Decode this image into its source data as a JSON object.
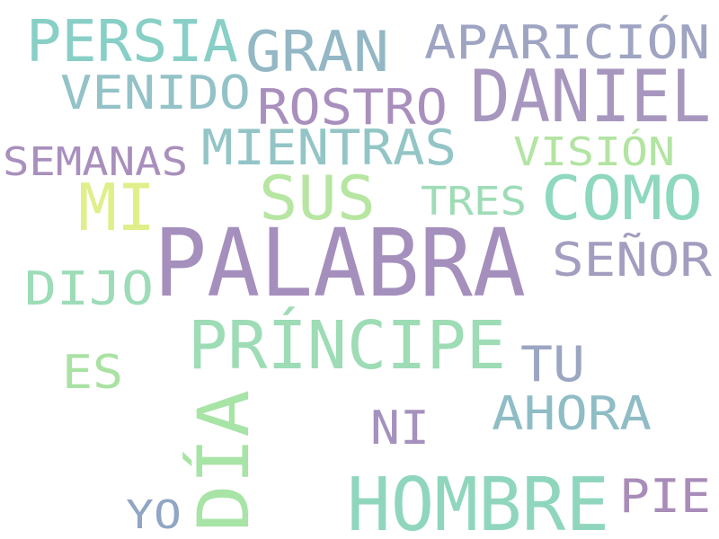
{
  "words": [
    {
      "text": "PALABRA",
      "color": "#a48fbd"
    },
    {
      "text": "HOMBRE",
      "color": "#8fd6bd"
    },
    {
      "text": "DANIEL",
      "color": "#a797bf"
    },
    {
      "text": "PRÍNCIPE",
      "color": "#9ddcb5"
    },
    {
      "text": "DÍA",
      "color": "#a7e4a6"
    },
    {
      "text": "PERSIA",
      "color": "#88cfc6"
    },
    {
      "text": "COMO",
      "color": "#8ed8be"
    },
    {
      "text": "SUS",
      "color": "#b6e6a2"
    },
    {
      "text": "GRAN",
      "color": "#93b7c4"
    },
    {
      "text": "MI",
      "color": "#e0ef8a"
    },
    {
      "text": "MIENTRAS",
      "color": "#93c5c6"
    },
    {
      "text": "APARICIÓN",
      "color": "#9ea4c2"
    },
    {
      "text": "SEÑOR",
      "color": "#a39dbf"
    },
    {
      "text": "ROSTRO",
      "color": "#a98fbd"
    },
    {
      "text": "VENIDO",
      "color": "#93c2c8"
    },
    {
      "text": "AHORA",
      "color": "#8fbdc6"
    },
    {
      "text": "DIJO",
      "color": "#9cdcb7"
    },
    {
      "text": "PIE",
      "color": "#a98cb9"
    },
    {
      "text": "TU",
      "color": "#9ba6c2"
    },
    {
      "text": "SEMANAS",
      "color": "#a98fbd"
    },
    {
      "text": "NI",
      "color": "#a491bf"
    },
    {
      "text": "VISIÓN",
      "color": "#b2e4a2"
    },
    {
      "text": "ES",
      "color": "#a9e2a3"
    },
    {
      "text": "TRES",
      "color": "#9edcb6"
    },
    {
      "text": "YO",
      "color": "#91a6c5"
    }
  ]
}
